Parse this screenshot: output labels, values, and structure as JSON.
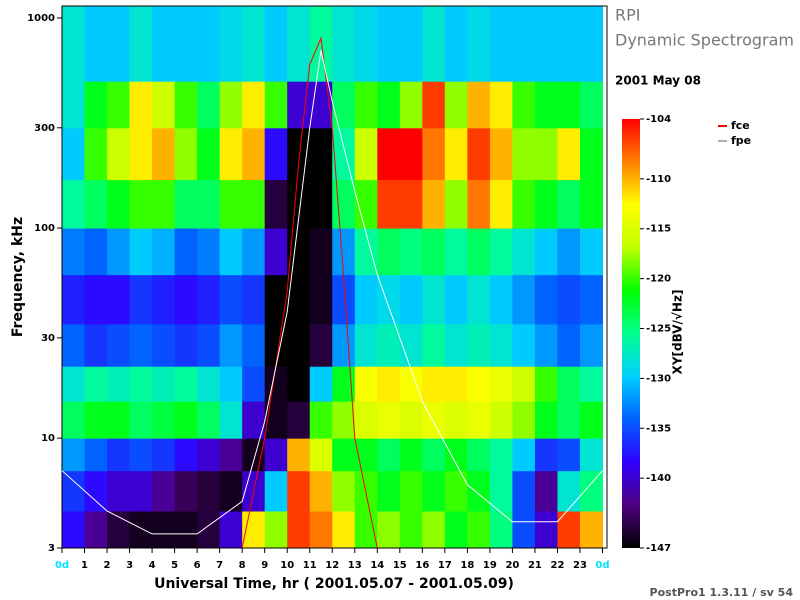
{
  "chart_data": {
    "type": "heatmap",
    "title": "RPI",
    "subtitle": "Dynamic Spectrogram",
    "date": "2001 May 08",
    "x_label": "Universal Time, hr ( 2001.05.07 - 2001.05.09)",
    "y_label": "Frequency, kHz",
    "colorbar_label": "XY[dBV/√Hz]",
    "footer": "PostPro1 1.3.11 / sv 54",
    "xlim": [
      0,
      24.2
    ],
    "xticks": [
      {
        "value": 0,
        "label": "0d"
      },
      1,
      2,
      3,
      4,
      5,
      6,
      7,
      8,
      9,
      10,
      11,
      12,
      13,
      14,
      15,
      16,
      17,
      18,
      19,
      20,
      21,
      22,
      23,
      {
        "value": 24,
        "label": "0d"
      }
    ],
    "edge_tick_color": "#00e5ff",
    "ylim": [
      3,
      1140
    ],
    "yticks": [
      3,
      10,
      30,
      100,
      300,
      1000
    ],
    "log_y": true,
    "x_bins": [
      0,
      1,
      2,
      3,
      4,
      5,
      6,
      7,
      8,
      9,
      10,
      11,
      12,
      13,
      14,
      15,
      16,
      17,
      18,
      19,
      20,
      21,
      22,
      23,
      24
    ],
    "y_bins": [
      3,
      4.5,
      7,
      10,
      15,
      22,
      35,
      60,
      100,
      170,
      300,
      500,
      1140
    ],
    "z": [
      [
        -138,
        -142,
        -145,
        -146,
        -146,
        -146,
        -145,
        -140,
        -112,
        -118,
        -106,
        -108,
        -112,
        -120,
        -118,
        -120,
        -118,
        -122,
        -120,
        -125,
        -135,
        -140,
        -106,
        -110
      ],
      [
        -136,
        -138,
        -140,
        -140,
        -142,
        -144,
        -145,
        -146,
        -140,
        -130,
        -106,
        -110,
        -118,
        -120,
        -122,
        -120,
        -122,
        -120,
        -122,
        -126,
        -135,
        -142,
        -128,
        -125
      ],
      [
        -132,
        -134,
        -136,
        -135,
        -136,
        -138,
        -140,
        -142,
        -146,
        -140,
        -110,
        -115,
        -122,
        -122,
        -124,
        -122,
        -124,
        -122,
        -124,
        -126,
        -130,
        -136,
        -135,
        -128
      ],
      [
        -124,
        -122,
        -122,
        -124,
        -123,
        -122,
        -124,
        -128,
        -140,
        -146,
        -145,
        -120,
        -118,
        -115,
        -114,
        -115,
        -114,
        -115,
        -114,
        -116,
        -118,
        -122,
        -124,
        -122
      ],
      [
        -128,
        -126,
        -127,
        -126,
        -127,
        -126,
        -128,
        -130,
        -135,
        -146,
        -147,
        -130,
        -122,
        -113,
        -112,
        -113,
        -112,
        -112,
        -113,
        -114,
        -116,
        -120,
        -124,
        -126
      ],
      [
        -134,
        -136,
        -135,
        -134,
        -135,
        -136,
        -135,
        -132,
        -134,
        -147,
        -147,
        -145,
        -132,
        -128,
        -127,
        -128,
        -126,
        -128,
        -127,
        -128,
        -130,
        -132,
        -134,
        -132
      ],
      [
        -137,
        -138,
        -138,
        -136,
        -137,
        -138,
        -137,
        -135,
        -136,
        -147,
        -147,
        -146,
        -135,
        -130,
        -129,
        -130,
        -128,
        -130,
        -128,
        -130,
        -132,
        -134,
        -135,
        -134
      ],
      [
        -133,
        -134,
        -132,
        -130,
        -131,
        -134,
        -133,
        -130,
        -132,
        -140,
        -147,
        -146,
        -132,
        -126,
        -124,
        -125,
        -124,
        -126,
        -124,
        -126,
        -128,
        -130,
        -132,
        -130
      ],
      [
        -126,
        -124,
        -122,
        -120,
        -120,
        -124,
        -124,
        -120,
        -120,
        -145,
        -147,
        -147,
        -124,
        -120,
        -106,
        -106,
        -110,
        -118,
        -108,
        -112,
        -120,
        -122,
        -124,
        -122
      ],
      [
        -130,
        -120,
        -116,
        -112,
        -110,
        -118,
        -122,
        -112,
        -110,
        -138,
        -147,
        -147,
        -126,
        -116,
        -104,
        -104,
        -108,
        -112,
        -106,
        -110,
        -118,
        -118,
        -112,
        -122
      ],
      [
        -128,
        -122,
        -120,
        -112,
        -116,
        -120,
        -124,
        -118,
        -112,
        -120,
        -140,
        -140,
        -124,
        -120,
        -122,
        -118,
        -106,
        -118,
        -110,
        -112,
        -120,
        -122,
        -122,
        -124
      ],
      [
        -128,
        -130,
        -130,
        -128,
        -130,
        -130,
        -130,
        -129,
        -128,
        -130,
        -128,
        -126,
        -128,
        -129,
        -130,
        -130,
        -128,
        -130,
        -129,
        -130,
        -130,
        -130,
        -130,
        -130
      ]
    ],
    "zlim": [
      -147,
      -104
    ],
    "zticks": [
      -104,
      -110,
      -115,
      -120,
      -125,
      -130,
      -135,
      -140,
      -147
    ],
    "colorscale": [
      "#000000",
      "#500080",
      "#3000ff",
      "#0060ff",
      "#00d0ff",
      "#00ff90",
      "#00ff00",
      "#c0ff00",
      "#ffff00",
      "#ff8000",
      "#ff0000"
    ],
    "series": [
      {
        "name": "fce",
        "color": "#ff0000",
        "legend_color": "#ff0000",
        "x": [
          8,
          9,
          10,
          10.5,
          11,
          11.5,
          12,
          12.5,
          13,
          14
        ],
        "values": [
          3,
          10,
          50,
          200,
          600,
          800,
          300,
          60,
          10,
          3
        ]
      },
      {
        "name": "fpe",
        "color": "#ffffff",
        "legend_color": "#b0b0b0",
        "x": [
          0,
          2,
          4,
          6,
          8,
          9,
          10,
          11,
          11.5,
          12,
          13,
          14,
          16,
          18,
          20,
          22,
          24
        ],
        "values": [
          7,
          4.5,
          3.5,
          3.5,
          5,
          12,
          40,
          300,
          700,
          400,
          150,
          60,
          15,
          6,
          4,
          4,
          7
        ]
      }
    ]
  }
}
